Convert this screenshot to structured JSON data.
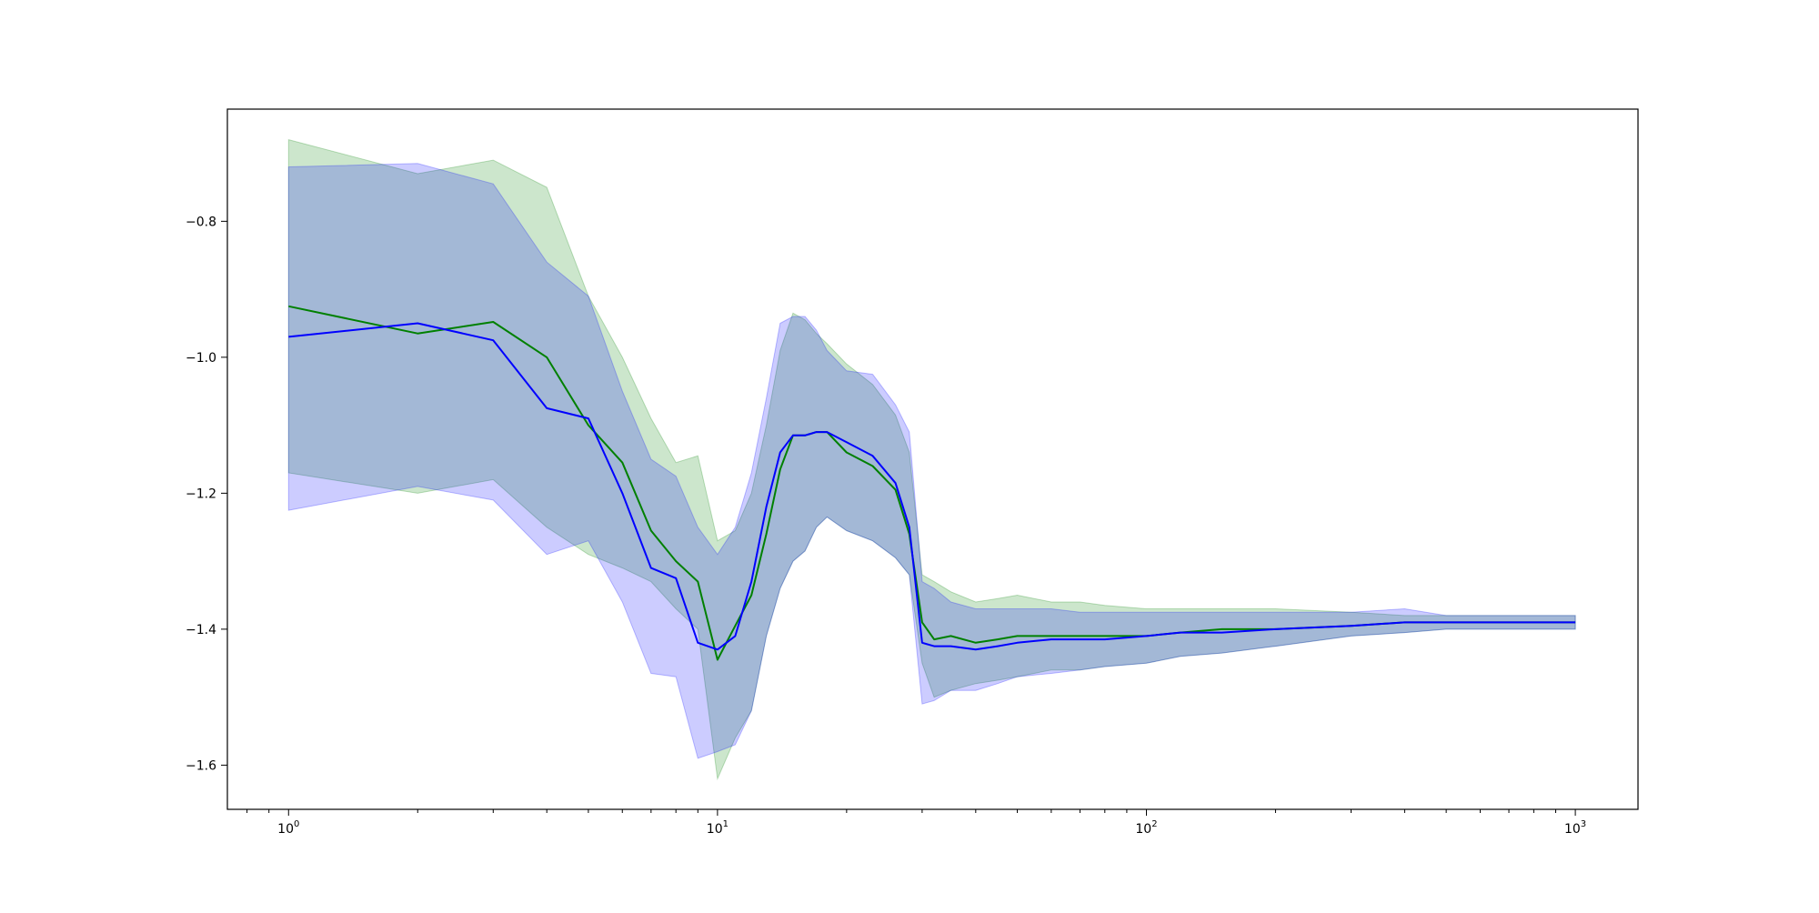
{
  "chart_data": {
    "type": "line",
    "title": "",
    "xlabel": "",
    "ylabel": "",
    "xscale": "log",
    "xlim": [
      0.72,
      1400
    ],
    "ylim": [
      -1.665,
      -0.635
    ],
    "grid": false,
    "x_ticks": [
      {
        "value": 1,
        "base": "10",
        "exp": "0"
      },
      {
        "value": 10,
        "base": "10",
        "exp": "1"
      },
      {
        "value": 100,
        "base": "10",
        "exp": "2"
      },
      {
        "value": 1000,
        "base": "10",
        "exp": "3"
      }
    ],
    "y_ticks": [
      {
        "value": -1.6,
        "label": "−1.6"
      },
      {
        "value": -1.4,
        "label": "−1.4"
      },
      {
        "value": -1.2,
        "label": "−1.2"
      },
      {
        "value": -1.0,
        "label": "−1.0"
      },
      {
        "value": -0.8,
        "label": "−0.8"
      }
    ],
    "series": [
      {
        "color": "#008000",
        "band_color": "#008000",
        "band_opacity": 0.2,
        "points": [
          [
            1,
            -0.925,
            -1.17,
            -0.68
          ],
          [
            2,
            -0.965,
            -1.2,
            -0.73
          ],
          [
            3,
            -0.948,
            -1.18,
            -0.71
          ],
          [
            4,
            -1.0,
            -1.25,
            -0.75
          ],
          [
            5,
            -1.1,
            -1.29,
            -0.91
          ],
          [
            6,
            -1.155,
            -1.31,
            -1.0
          ],
          [
            7,
            -1.255,
            -1.33,
            -1.09
          ],
          [
            8,
            -1.3,
            -1.37,
            -1.155
          ],
          [
            9,
            -1.33,
            -1.4,
            -1.145
          ],
          [
            10,
            -1.445,
            -1.62,
            -1.27
          ],
          [
            11,
            -1.395,
            -1.56,
            -1.255
          ],
          [
            12,
            -1.35,
            -1.52,
            -1.2
          ],
          [
            13,
            -1.26,
            -1.41,
            -1.1
          ],
          [
            14,
            -1.165,
            -1.34,
            -0.99
          ],
          [
            15,
            -1.115,
            -1.3,
            -0.935
          ],
          [
            16,
            -1.115,
            -1.285,
            -0.945
          ],
          [
            17,
            -1.11,
            -1.25,
            -0.965
          ],
          [
            18,
            -1.11,
            -1.235,
            -0.98
          ],
          [
            20,
            -1.14,
            -1.255,
            -1.01
          ],
          [
            23,
            -1.16,
            -1.27,
            -1.04
          ],
          [
            26,
            -1.195,
            -1.295,
            -1.085
          ],
          [
            28,
            -1.26,
            -1.32,
            -1.14
          ],
          [
            30,
            -1.39,
            -1.45,
            -1.32
          ],
          [
            32,
            -1.415,
            -1.5,
            -1.33
          ],
          [
            35,
            -1.41,
            -1.49,
            -1.345
          ],
          [
            40,
            -1.42,
            -1.48,
            -1.36
          ],
          [
            45,
            -1.415,
            -1.475,
            -1.355
          ],
          [
            50,
            -1.41,
            -1.47,
            -1.35
          ],
          [
            60,
            -1.41,
            -1.46,
            -1.36
          ],
          [
            70,
            -1.41,
            -1.46,
            -1.36
          ],
          [
            80,
            -1.41,
            -1.455,
            -1.365
          ],
          [
            100,
            -1.41,
            -1.45,
            -1.37
          ],
          [
            120,
            -1.405,
            -1.44,
            -1.37
          ],
          [
            150,
            -1.4,
            -1.435,
            -1.37
          ],
          [
            200,
            -1.4,
            -1.425,
            -1.37
          ],
          [
            300,
            -1.395,
            -1.41,
            -1.375
          ],
          [
            400,
            -1.39,
            -1.405,
            -1.38
          ],
          [
            500,
            -1.39,
            -1.4,
            -1.38
          ],
          [
            1000,
            -1.39,
            -1.4,
            -1.38
          ]
        ]
      },
      {
        "color": "#0000ff",
        "band_color": "#0000ff",
        "band_opacity": 0.2,
        "points": [
          [
            1,
            -0.97,
            -1.225,
            -0.72
          ],
          [
            2,
            -0.95,
            -1.19,
            -0.715
          ],
          [
            3,
            -0.975,
            -1.21,
            -0.745
          ],
          [
            4,
            -1.075,
            -1.29,
            -0.86
          ],
          [
            5,
            -1.09,
            -1.27,
            -0.91
          ],
          [
            6,
            -1.2,
            -1.36,
            -1.05
          ],
          [
            7,
            -1.31,
            -1.465,
            -1.15
          ],
          [
            8,
            -1.325,
            -1.47,
            -1.175
          ],
          [
            9,
            -1.42,
            -1.59,
            -1.25
          ],
          [
            10,
            -1.43,
            -1.58,
            -1.29
          ],
          [
            11,
            -1.41,
            -1.57,
            -1.25
          ],
          [
            12,
            -1.33,
            -1.52,
            -1.17
          ],
          [
            13,
            -1.22,
            -1.41,
            -1.06
          ],
          [
            14,
            -1.14,
            -1.34,
            -0.95
          ],
          [
            15,
            -1.115,
            -1.3,
            -0.94
          ],
          [
            16,
            -1.115,
            -1.285,
            -0.94
          ],
          [
            17,
            -1.11,
            -1.25,
            -0.96
          ],
          [
            18,
            -1.11,
            -1.235,
            -0.99
          ],
          [
            20,
            -1.125,
            -1.255,
            -1.02
          ],
          [
            23,
            -1.145,
            -1.27,
            -1.025
          ],
          [
            26,
            -1.185,
            -1.295,
            -1.07
          ],
          [
            28,
            -1.25,
            -1.32,
            -1.11
          ],
          [
            30,
            -1.42,
            -1.51,
            -1.33
          ],
          [
            32,
            -1.425,
            -1.505,
            -1.34
          ],
          [
            35,
            -1.425,
            -1.49,
            -1.36
          ],
          [
            40,
            -1.43,
            -1.49,
            -1.37
          ],
          [
            45,
            -1.425,
            -1.48,
            -1.37
          ],
          [
            50,
            -1.42,
            -1.47,
            -1.37
          ],
          [
            60,
            -1.415,
            -1.465,
            -1.37
          ],
          [
            70,
            -1.415,
            -1.46,
            -1.375
          ],
          [
            80,
            -1.415,
            -1.455,
            -1.375
          ],
          [
            100,
            -1.41,
            -1.45,
            -1.375
          ],
          [
            120,
            -1.405,
            -1.44,
            -1.375
          ],
          [
            150,
            -1.405,
            -1.435,
            -1.375
          ],
          [
            200,
            -1.4,
            -1.425,
            -1.375
          ],
          [
            300,
            -1.395,
            -1.41,
            -1.375
          ],
          [
            400,
            -1.39,
            -1.405,
            -1.37
          ],
          [
            500,
            -1.39,
            -1.4,
            -1.38
          ],
          [
            1000,
            -1.39,
            -1.4,
            -1.38
          ]
        ]
      }
    ]
  }
}
